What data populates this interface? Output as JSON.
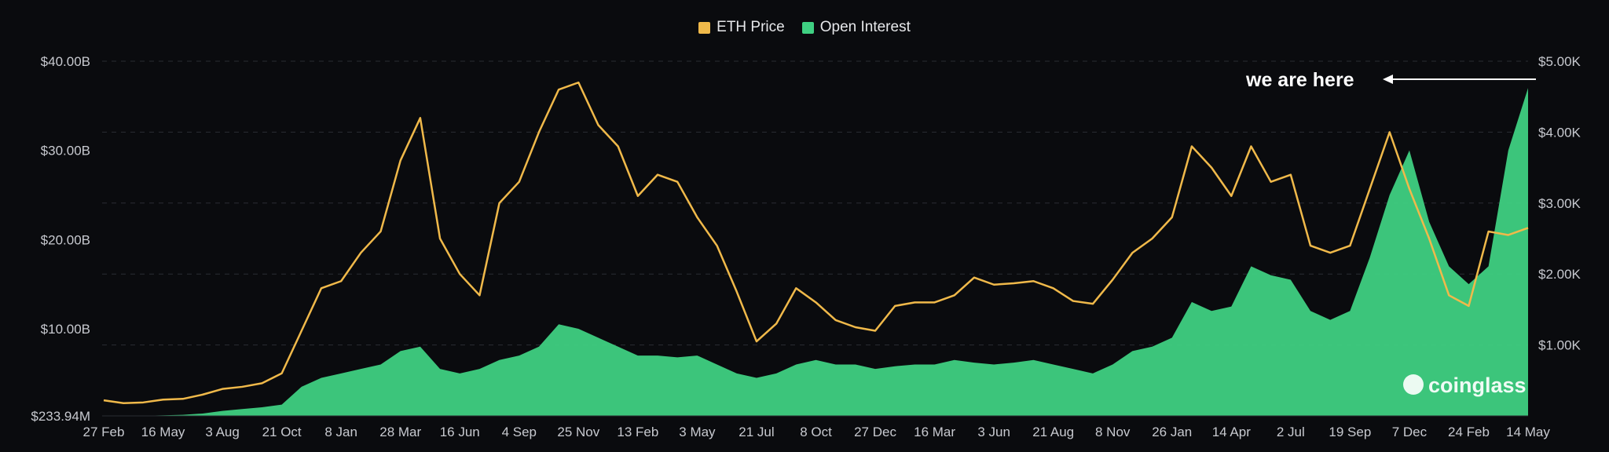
{
  "chart_data": {
    "type": "area",
    "legend": [
      {
        "name": "ETH Price",
        "color": "#f0b94a"
      },
      {
        "name": "Open Interest",
        "color": "#3fd082"
      }
    ],
    "legend_position": "top-center",
    "grid": true,
    "left_axis": {
      "unit": "USD",
      "range": [
        0.23394,
        40
      ],
      "tick_labels": [
        "$233.94M",
        "$10.00B",
        "$20.00B",
        "$30.00B",
        "$40.00B"
      ],
      "tick_values": [
        0.23394,
        10,
        20,
        30,
        40
      ]
    },
    "right_axis": {
      "unit": "USD",
      "range": [
        0,
        5000
      ],
      "tick_labels": [
        "$1.00K",
        "$2.00K",
        "$3.00K",
        "$4.00K",
        "$5.00K"
      ],
      "tick_values": [
        1000,
        2000,
        3000,
        4000,
        5000
      ]
    },
    "x_tick_labels": [
      "27 Feb",
      "16 May",
      "3 Aug",
      "21 Oct",
      "8 Jan",
      "28 Mar",
      "16 Jun",
      "4 Sep",
      "25 Nov",
      "13 Feb",
      "3 May",
      "21 Jul",
      "8 Oct",
      "27 Dec",
      "16 Mar",
      "3 Jun",
      "21 Aug",
      "8 Nov",
      "26 Jan",
      "14 Apr",
      "2 Jul",
      "19 Sep",
      "7 Dec",
      "24 Feb",
      "14 May"
    ],
    "series": [
      {
        "name": "ETH Price",
        "axis": "right",
        "values": [
          220,
          180,
          190,
          230,
          240,
          300,
          380,
          410,
          460,
          600,
          1200,
          1800,
          1900,
          2300,
          2600,
          3600,
          4200,
          2500,
          2000,
          1700,
          3000,
          3300,
          4000,
          4600,
          4700,
          4100,
          3800,
          3100,
          3400,
          3300,
          2800,
          2400,
          1750,
          1050,
          1300,
          1800,
          1600,
          1350,
          1250,
          1200,
          1550,
          1600,
          1600,
          1700,
          1950,
          1850,
          1870,
          1900,
          1800,
          1620,
          1580,
          1920,
          2300,
          2500,
          2800,
          3800,
          3500,
          3100,
          3800,
          3300,
          3400,
          2400,
          2300,
          2400,
          3200,
          4000,
          3200,
          2500,
          1700,
          1550,
          2600,
          2550,
          2650
        ]
      },
      {
        "name": "Open Interest",
        "axis": "left",
        "values": [
          0.2,
          0.2,
          0.25,
          0.3,
          0.35,
          0.5,
          0.8,
          1.0,
          1.2,
          1.5,
          3.5,
          4.5,
          5.0,
          5.5,
          6.0,
          7.5,
          8.0,
          5.5,
          5.0,
          5.5,
          6.5,
          7.0,
          8.0,
          10.5,
          10.0,
          9.0,
          8.0,
          7.0,
          7.0,
          6.8,
          7.0,
          6.0,
          5.0,
          4.5,
          5.0,
          6.0,
          6.5,
          6.0,
          6.0,
          5.5,
          5.8,
          6.0,
          6.0,
          6.5,
          6.2,
          6.0,
          6.2,
          6.5,
          6.0,
          5.5,
          5.0,
          6.0,
          7.5,
          8.0,
          9.0,
          13.0,
          12.0,
          12.5,
          17.0,
          16.0,
          15.5,
          12.0,
          11.0,
          12.0,
          18.0,
          25.0,
          30.0,
          22.0,
          17.0,
          15.0,
          17.0,
          30.0,
          37.0
        ]
      }
    ]
  },
  "annotation": {
    "text": "we are here"
  },
  "watermark": {
    "text": "coinglass"
  }
}
